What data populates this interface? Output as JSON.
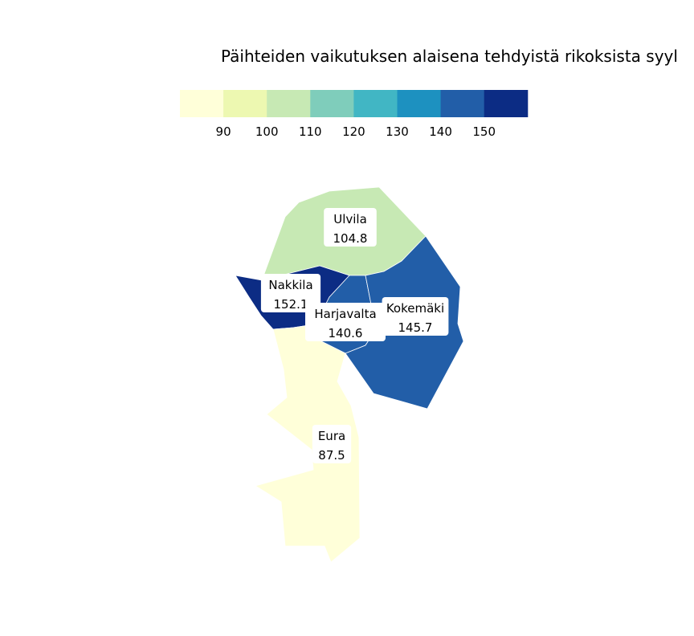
{
  "title": "Päihteiden vaikutuksen alaisena tehdyistä rikoksista syyl",
  "legend": {
    "colors": [
      "#ffffd9",
      "#edf8b1",
      "#c7e9b4",
      "#7fcdbb",
      "#41b6c4",
      "#1d91c0",
      "#225ea8",
      "#0c2c84"
    ],
    "ticks": [
      "90",
      "100",
      "110",
      "120",
      "130",
      "140",
      "150"
    ]
  },
  "chart_data": {
    "type": "choropleth",
    "title": "Päihteiden vaikutuksen alaisena tehdyistä rikoksista syyl",
    "regions": [
      {
        "name": "Ulvila",
        "value": 104.8,
        "value_label": "104.8",
        "color": "#c7e9b4"
      },
      {
        "name": "Nakkila",
        "value": 152.1,
        "value_label": "152.1",
        "color": "#0c2c84"
      },
      {
        "name": "Harjavalta",
        "value": 140.6,
        "value_label": "140.6",
        "color": "#225ea8"
      },
      {
        "name": "Kokemäki",
        "value": 145.7,
        "value_label": "145.7",
        "color": "#225ea8"
      },
      {
        "name": "Eura",
        "value": 87.5,
        "value_label": "87.5",
        "color": "#ffffd9"
      }
    ]
  }
}
